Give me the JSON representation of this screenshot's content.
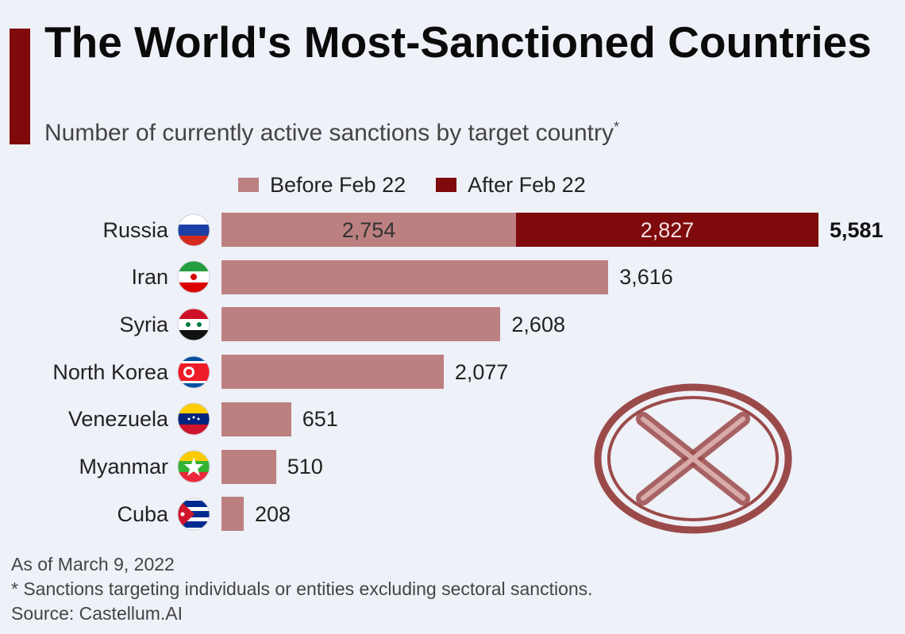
{
  "header": {
    "title": "The World's Most-Sanctioned Countries",
    "subtitle": "Number of currently active sanctions by target country",
    "subtitle_mark": "*"
  },
  "chart_data": {
    "type": "bar",
    "orientation": "horizontal",
    "stacked": true,
    "title": "The World's Most-Sanctioned Countries",
    "subtitle": "Number of currently active sanctions by target country*",
    "categories": [
      "Russia",
      "Iran",
      "Syria",
      "North Korea",
      "Venezuela",
      "Myanmar",
      "Cuba"
    ],
    "series": [
      {
        "name": "Before Feb 22",
        "color": "#bc8080",
        "values": [
          2754,
          3616,
          2608,
          2077,
          651,
          510,
          208
        ]
      },
      {
        "name": "After Feb 22",
        "color": "#7f0a0c",
        "values": [
          2827,
          0,
          0,
          0,
          0,
          0,
          0
        ]
      }
    ],
    "totals": [
      5581,
      3616,
      2608,
      2077,
      651,
      510,
      208
    ],
    "value_labels": {
      "inside": [
        [
          "2,754",
          "2,827"
        ]
      ],
      "outside": [
        "5,581",
        "3,616",
        "2,608",
        "2,077",
        "651",
        "510",
        "208"
      ]
    },
    "xlim": [
      0,
      5581
    ],
    "grid": false,
    "legend": "top",
    "flags": [
      "russia-flag",
      "iran-flag",
      "syria-flag",
      "north-korea-flag",
      "venezuela-flag",
      "myanmar-flag",
      "cuba-flag"
    ]
  },
  "stamp": {
    "icon": "x-mark-icon",
    "color": "#9b4a4a"
  },
  "footnotes": {
    "date": "As of March 9, 2022",
    "note": "* Sanctions targeting individuals or entities excluding sectoral sanctions.",
    "source": "Source: Castellum.AI"
  }
}
